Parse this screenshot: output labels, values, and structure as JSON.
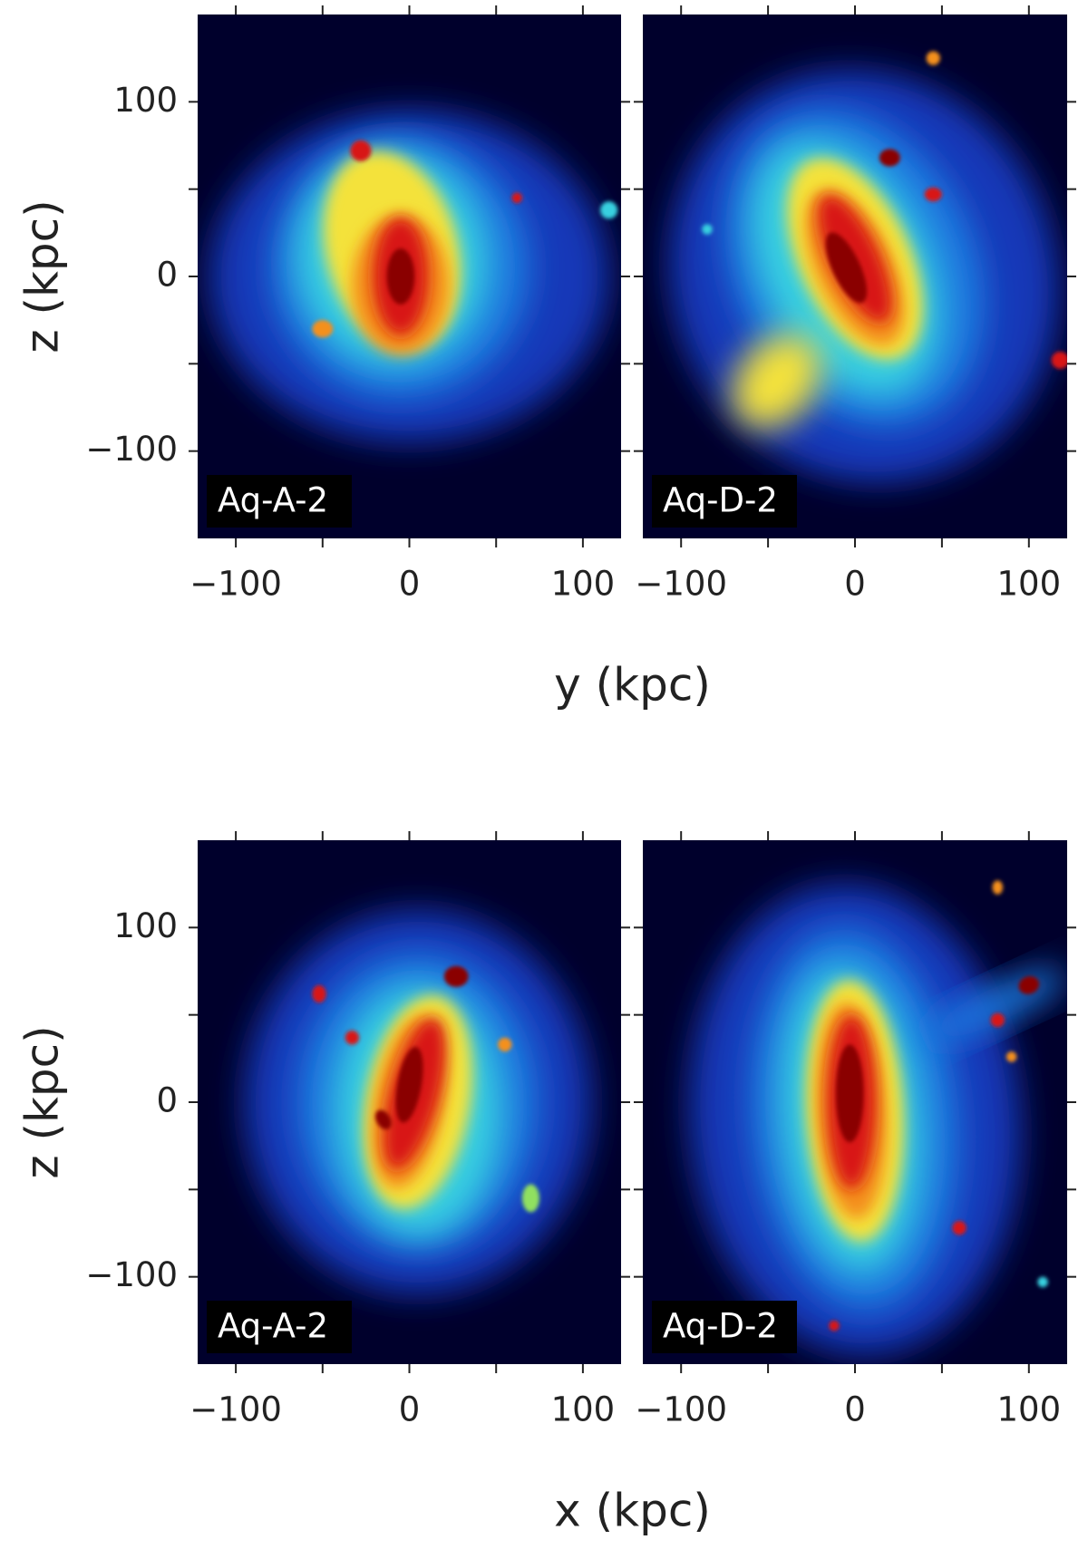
{
  "chart_data": [
    {
      "type": "image",
      "label": "Aq-A-2",
      "xlabel": "y (kpc)",
      "ylabel": "z (kpc)",
      "xlim": [
        -122,
        122
      ],
      "ylim": [
        -150,
        150
      ],
      "xticks": [
        {
          "value": -100,
          "label": "−100"
        },
        0,
        100
      ],
      "minor_xticks": [
        -50,
        50
      ],
      "yticks": [
        {
          "value": -100,
          "label": "−100"
        },
        0,
        100
      ],
      "minor_yticks": [
        -50,
        50
      ]
    },
    {
      "type": "image",
      "label": "Aq-D-2",
      "xlim": [
        -122,
        122
      ],
      "ylim": [
        -150,
        150
      ],
      "xticks": [
        {
          "value": -100,
          "label": "−100"
        },
        0,
        100
      ],
      "minor_xticks": [
        -50,
        50
      ],
      "ytick_marks": [
        -100,
        -50,
        0,
        50,
        100
      ]
    },
    {
      "type": "image",
      "label": "Aq-A-2",
      "xlabel": "x (kpc)",
      "ylabel": "z (kpc)",
      "xlim": [
        -122,
        122
      ],
      "ylim": [
        -150,
        150
      ],
      "xticks": [
        {
          "value": -100,
          "label": "−100"
        },
        0,
        100
      ],
      "minor_xticks": [
        -50,
        50
      ],
      "yticks": [
        {
          "value": -100,
          "label": "−100"
        },
        0,
        100
      ],
      "minor_yticks": [
        -50,
        50
      ]
    },
    {
      "type": "image",
      "label": "Aq-D-2",
      "xlim": [
        -122,
        122
      ],
      "ylim": [
        -150,
        150
      ],
      "xticks": [
        {
          "value": -100,
          "label": "−100"
        },
        0,
        100
      ],
      "minor_xticks": [
        -50,
        50
      ],
      "ytick_marks": [
        -100,
        -50,
        0,
        50,
        100
      ]
    }
  ]
}
